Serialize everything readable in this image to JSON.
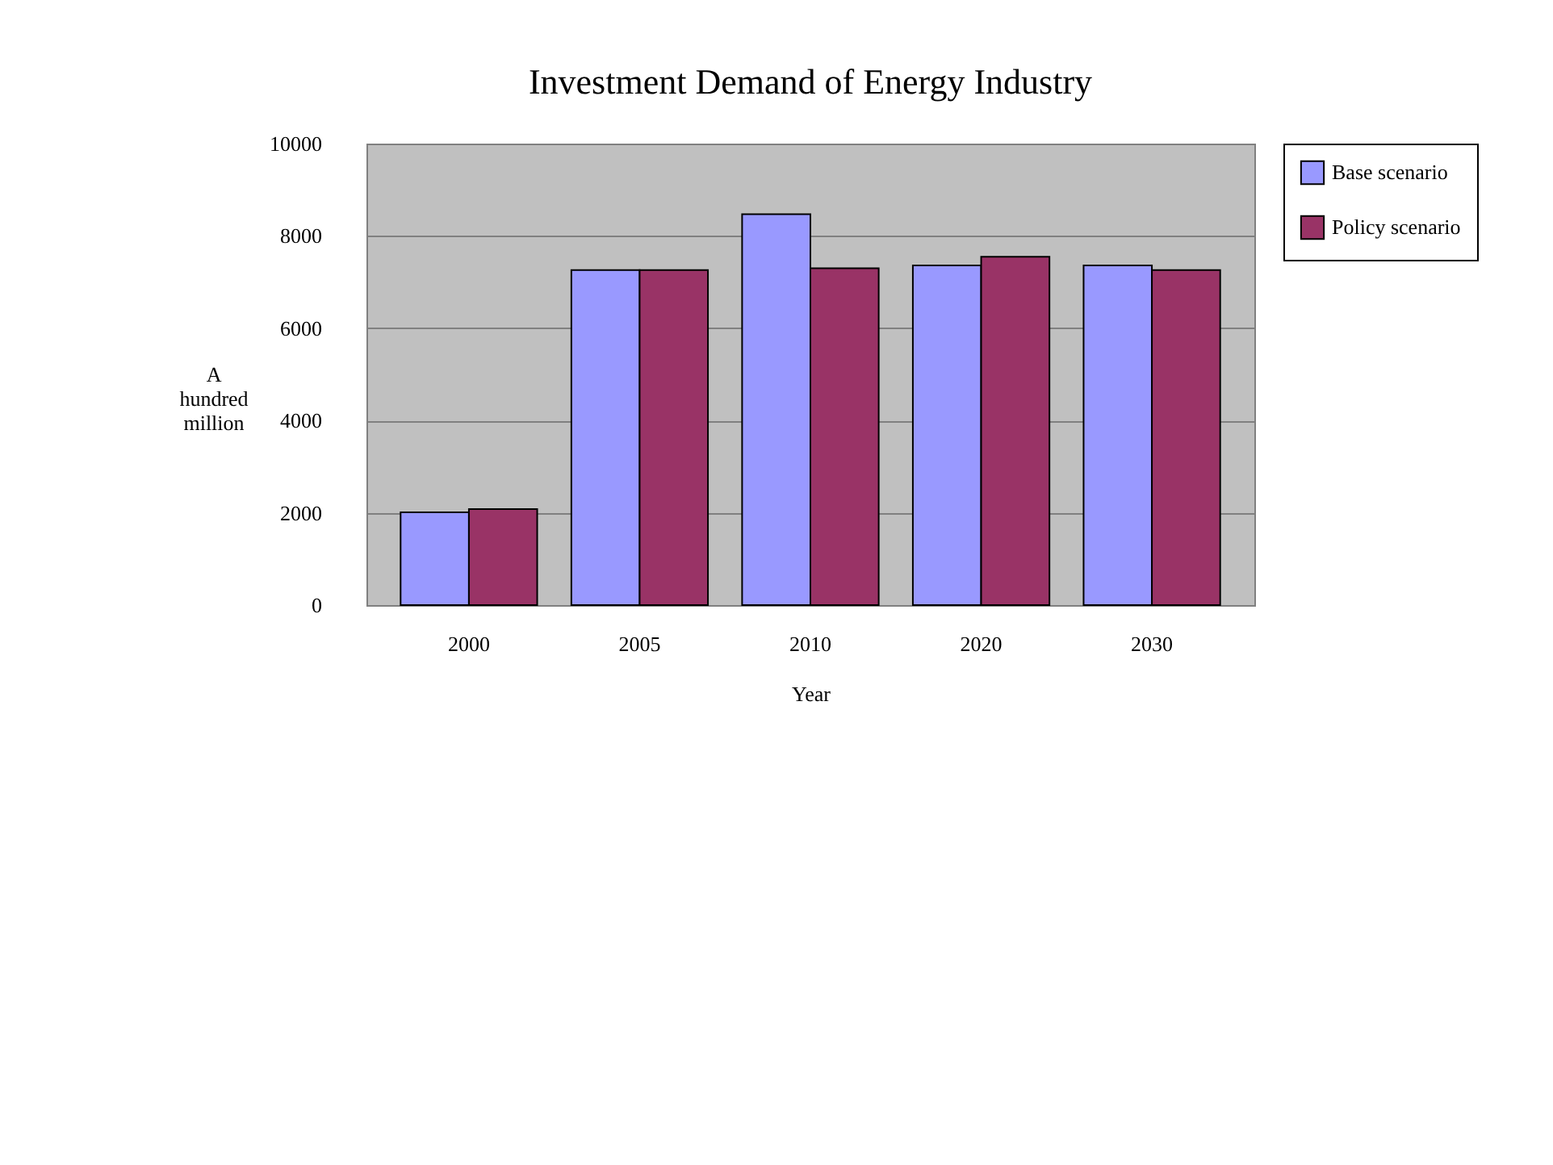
{
  "chart_data": {
    "type": "bar",
    "title": "Investment Demand of Energy Industry",
    "xlabel": "Year",
    "ylabel": "A hundred million",
    "categories": [
      "2000",
      "2005",
      "2010",
      "2020",
      "2030"
    ],
    "series": [
      {
        "name": "Base scenario",
        "color": "#9999ff",
        "values": [
          2010,
          7260,
          8470,
          7360,
          7360
        ]
      },
      {
        "name": "Policy scenario",
        "color": "#993366",
        "values": [
          2080,
          7260,
          7300,
          7550,
          7260
        ]
      }
    ],
    "ylim": [
      0,
      10000
    ],
    "yticks": [
      0,
      2000,
      4000,
      6000,
      8000,
      10000
    ],
    "grid": "y",
    "legend": "right"
  }
}
